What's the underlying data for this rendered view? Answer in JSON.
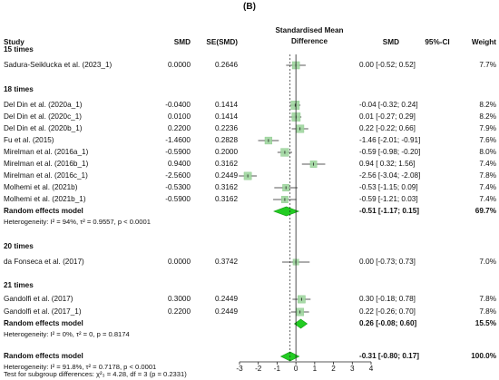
{
  "panel_label": "(B)",
  "headers": {
    "study": "Study",
    "smd": "SMD",
    "se": "SE(SMD)",
    "forest": "Standardised Mean\nDifference",
    "forest_line1": "Standardised Mean",
    "forest_line2": "Difference",
    "smd2": "SMD",
    "ci": "95%-CI",
    "weight": "Weight"
  },
  "chart_data": {
    "type": "forest",
    "xlim": [
      -3,
      4
    ],
    "xticks": [
      -3,
      -2,
      -1,
      0,
      1,
      2,
      3,
      4
    ],
    "null_line": 0,
    "overall_line": -0.31,
    "groups": [
      {
        "title": "15 times",
        "studies": [
          {
            "study": "Sadura-Seiklucka et al. (2023_1)",
            "smd": "0.0000",
            "se": "0.2646",
            "est": 0.0,
            "lo": -0.52,
            "hi": 0.52,
            "ci": "0.00 [-0.52; 0.52]",
            "weight": "7.7%",
            "w": 7.7
          }
        ]
      },
      {
        "title": "18 times",
        "studies": [
          {
            "study": "Del Din et al. (2020a_1)",
            "smd": "-0.0400",
            "se": "0.1414",
            "est": -0.04,
            "lo": -0.32,
            "hi": 0.24,
            "ci": "-0.04 [-0.32; 0.24]",
            "weight": "8.2%",
            "w": 8.2
          },
          {
            "study": "Del Din et al. (2020c_1)",
            "smd": "0.0100",
            "se": "0.1414",
            "est": 0.01,
            "lo": -0.27,
            "hi": 0.29,
            "ci": "0.01 [-0.27; 0.29]",
            "weight": "8.2%",
            "w": 8.2
          },
          {
            "study": "Del Din et al. (2020b_1)",
            "smd": "0.2200",
            "se": "0.2236",
            "est": 0.22,
            "lo": -0.22,
            "hi": 0.66,
            "ci": "0.22 [-0.22; 0.66]",
            "weight": "7.9%",
            "w": 7.9
          },
          {
            "study": "Fu et al. (2015)",
            "smd": "-1.4600",
            "se": "0.2828",
            "est": -1.46,
            "lo": -2.01,
            "hi": -0.91,
            "ci": "-1.46 [-2.01; -0.91]",
            "weight": "7.6%",
            "w": 7.6
          },
          {
            "study": "Mirelman et al. (2016a_1)",
            "smd": "-0.5900",
            "se": "0.2000",
            "est": -0.59,
            "lo": -0.98,
            "hi": -0.2,
            "ci": "-0.59 [-0.98; -0.20]",
            "weight": "8.0%",
            "w": 8.0
          },
          {
            "study": "Mirelman et al. (2016b_1)",
            "smd": "0.9400",
            "se": "0.3162",
            "est": 0.94,
            "lo": 0.32,
            "hi": 1.56,
            "ci": "0.94 [ 0.32; 1.56]",
            "weight": "7.4%",
            "w": 7.4
          },
          {
            "study": "Mirelman et al. (2016c_1)",
            "smd": "-2.5600",
            "se": "0.2449",
            "est": -2.56,
            "lo": -3.04,
            "hi": -2.08,
            "ci": "-2.56 [-3.04; -2.08]",
            "weight": "7.8%",
            "w": 7.8
          },
          {
            "study": "Molhemi et al. (2021b)",
            "smd": "-0.5300",
            "se": "0.3162",
            "est": -0.53,
            "lo": -1.15,
            "hi": 0.09,
            "ci": "-0.53 [-1.15; 0.09]",
            "weight": "7.4%",
            "w": 7.4
          },
          {
            "study": "Molhemi et al. (2021b_1)",
            "smd": "-0.5900",
            "se": "0.3162",
            "est": -0.59,
            "lo": -1.21,
            "hi": 0.03,
            "ci": "-0.59 [-1.21; 0.03]",
            "weight": "7.4%",
            "w": 7.4
          }
        ],
        "random": {
          "label": "Random effects model",
          "est": -0.51,
          "lo": -1.17,
          "hi": 0.15,
          "ci": "-0.51 [-1.17; 0.15]",
          "weight": "69.7%"
        },
        "heterogeneity": "Heterogeneity: I² = 94%, τ² = 0.9557, p < 0.0001"
      },
      {
        "title": "20 times",
        "studies": [
          {
            "study": "da Fonseca et al. (2017)",
            "smd": "0.0000",
            "se": "0.3742",
            "est": 0.0,
            "lo": -0.73,
            "hi": 0.73,
            "ci": "0.00 [-0.73; 0.73]",
            "weight": "7.0%",
            "w": 7.0
          }
        ]
      },
      {
        "title": "21 times",
        "studies": [
          {
            "study": "Gandolfi et al. (2017)",
            "smd": "0.3000",
            "se": "0.2449",
            "est": 0.3,
            "lo": -0.18,
            "hi": 0.78,
            "ci": "0.30 [-0.18; 0.78]",
            "weight": "7.8%",
            "w": 7.8
          },
          {
            "study": "Gandolfi et al. (2017_1)",
            "smd": "0.2200",
            "se": "0.2449",
            "est": 0.22,
            "lo": -0.26,
            "hi": 0.7,
            "ci": "0.22 [-0.26; 0.70]",
            "weight": "7.8%",
            "w": 7.8
          }
        ],
        "random": {
          "label": "Random effects model",
          "est": 0.26,
          "lo": -0.08,
          "hi": 0.6,
          "ci": "0.26 [-0.08; 0.60]",
          "weight": "15.5%"
        },
        "heterogeneity": "Heterogeneity: I² = 0%, τ² = 0, p = 0.8174"
      }
    ],
    "overall": {
      "label": "Random effects model",
      "est": -0.31,
      "lo": -0.8,
      "hi": 0.17,
      "ci": "-0.31 [-0.80; 0.17]",
      "weight": "100.0%"
    },
    "overall_heterogeneity": "Heterogeneity: I² = 91.8%, τ² = 0.7178, p < 0.0001",
    "subgroup_test": "Test for subgroup differences: χ²₃ = 4.28, df = 3 (p = 0.2331)"
  },
  "colors": {
    "square": "#9fd69f",
    "square_stroke": "#7cc27c",
    "diamond": "#22cc22",
    "diamond_stroke": "#119911",
    "line": "#222222"
  }
}
